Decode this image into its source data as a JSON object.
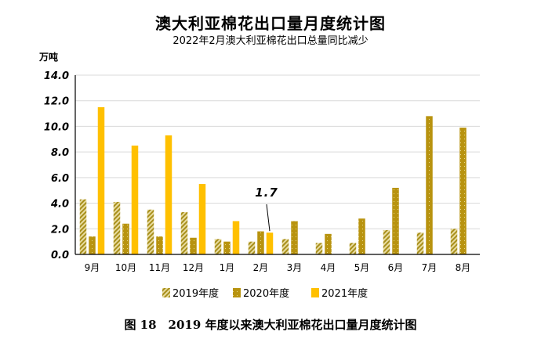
{
  "chart_data": {
    "type": "bar",
    "title": "澳大利亚棉花出口量月度统计图",
    "subtitle": "2022年2月澳大利亚棉花出口总量同比减少",
    "ylabel": "万吨",
    "ylim": [
      0,
      14
    ],
    "yticks": [
      "0.0",
      "2.0",
      "4.0",
      "6.0",
      "8.0",
      "10.0",
      "12.0",
      "14.0"
    ],
    "grid": "horizontal",
    "legend_position": "bottom",
    "categories": [
      "9月",
      "10月",
      "11月",
      "12月",
      "1月",
      "2月",
      "3月",
      "4月",
      "5月",
      "6月",
      "7月",
      "8月"
    ],
    "series": [
      {
        "name": "2019年度",
        "values": [
          4.3,
          4.1,
          3.5,
          3.3,
          1.2,
          1.0,
          1.2,
          0.9,
          0.9,
          1.9,
          1.7,
          2.0
        ],
        "color": "#c9b24a",
        "pattern": "diagonal-stripes"
      },
      {
        "name": "2020年度",
        "values": [
          1.4,
          2.4,
          1.4,
          1.3,
          1.0,
          1.8,
          2.6,
          1.6,
          2.8,
          5.2,
          10.8,
          9.9
        ],
        "color": "#b8930f",
        "pattern": "dotted"
      },
      {
        "name": "2021年度",
        "values": [
          11.5,
          8.5,
          9.3,
          5.5,
          2.6,
          1.7,
          null,
          null,
          null,
          null,
          null,
          null
        ],
        "color": "#ffc000",
        "pattern": "solid"
      }
    ],
    "annotations": [
      {
        "text": "1.7",
        "category": "2月",
        "series": "2021年度"
      }
    ],
    "caption": "图 18　2019 年度以来澳大利亚棉花出口量月度统计图"
  }
}
